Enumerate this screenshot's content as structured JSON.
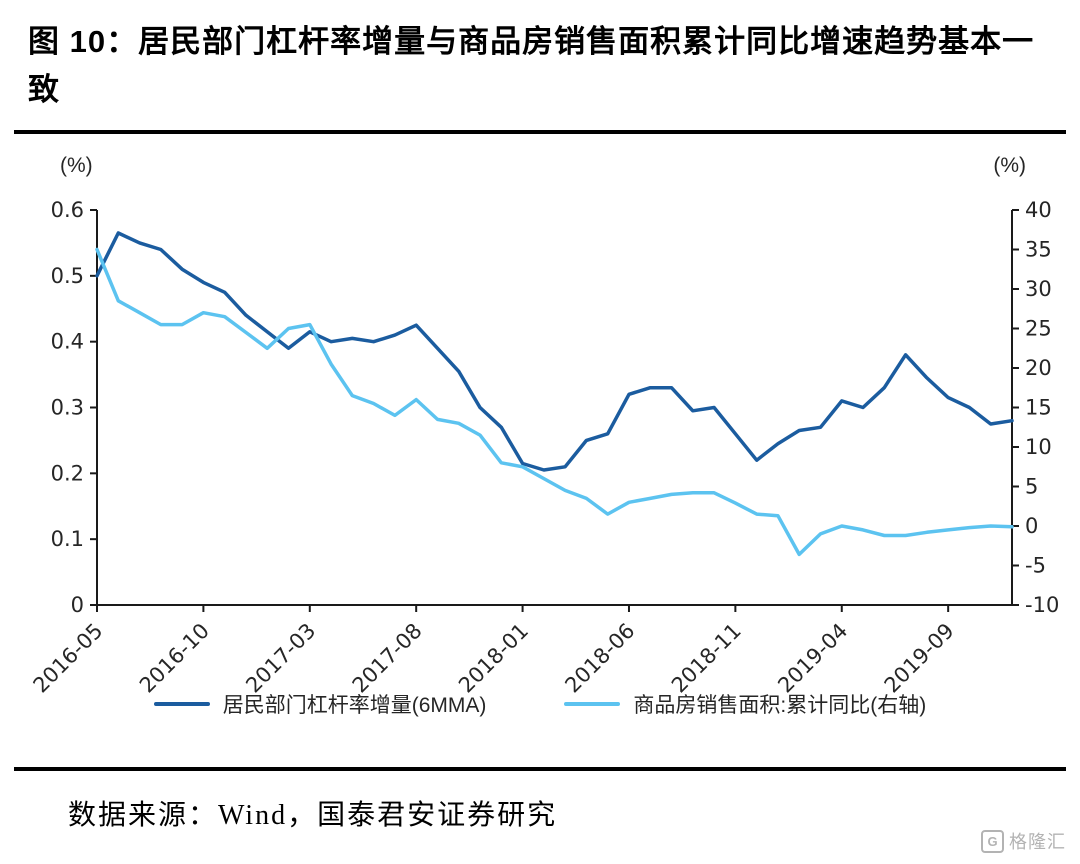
{
  "title": "图 10：居民部门杠杆率增量与商品房销售面积累计同比增速趋势基本一致",
  "source_text": "数据来源：Wind，国泰君安证券研究",
  "logo": {
    "letter": "G",
    "brand": "格隆汇"
  },
  "chart_data": {
    "type": "line",
    "title": "居民部门杠杆率增量与商品房销售面积累计同比增速",
    "grid": false,
    "legend_position": "bottom",
    "axis_color": "#1a1a1a",
    "tick_label_color": "#262626",
    "x": [
      "2016-05",
      "2016-06",
      "2016-07",
      "2016-08",
      "2016-09",
      "2016-10",
      "2016-11",
      "2016-12",
      "2017-01",
      "2017-02",
      "2017-03",
      "2017-04",
      "2017-05",
      "2017-06",
      "2017-07",
      "2017-08",
      "2017-09",
      "2017-10",
      "2017-11",
      "2017-12",
      "2018-01",
      "2018-02",
      "2018-03",
      "2018-04",
      "2018-05",
      "2018-06",
      "2018-07",
      "2018-08",
      "2018-09",
      "2018-10",
      "2018-11",
      "2018-12",
      "2019-01",
      "2019-02",
      "2019-03",
      "2019-04",
      "2019-05",
      "2019-06",
      "2019-07",
      "2019-08",
      "2019-09",
      "2019-10",
      "2019-11",
      "2019-12"
    ],
    "x_tick_labels": [
      "2016-05",
      "2016-10",
      "2017-03",
      "2017-08",
      "2018-01",
      "2018-06",
      "2018-11",
      "2019-04",
      "2019-09"
    ],
    "x_tick_indices": [
      0,
      5,
      10,
      15,
      20,
      25,
      30,
      35,
      40
    ],
    "left_axis": {
      "label": "(%)",
      "min": 0,
      "max": 0.6,
      "ticks": [
        "0",
        "0.1",
        "0.2",
        "0.3",
        "0.4",
        "0.5",
        "0.6"
      ]
    },
    "right_axis": {
      "label": "(%)",
      "min": -10,
      "max": 40,
      "ticks": [
        "-10",
        "-5",
        "0",
        "5",
        "10",
        "15",
        "20",
        "25",
        "30",
        "35",
        "40"
      ]
    },
    "series": [
      {
        "name": "居民部门杠杆率增量(6MMA)",
        "axis": "left",
        "color": "#1b5c9f",
        "values": [
          0.5,
          0.565,
          0.55,
          0.54,
          0.51,
          0.49,
          0.475,
          0.44,
          0.415,
          0.39,
          0.415,
          0.4,
          0.405,
          0.4,
          0.41,
          0.425,
          0.39,
          0.355,
          0.3,
          0.27,
          0.215,
          0.205,
          0.21,
          0.25,
          0.26,
          0.32,
          0.33,
          0.33,
          0.295,
          0.3,
          0.26,
          0.22,
          0.245,
          0.265,
          0.27,
          0.31,
          0.3,
          0.33,
          0.38,
          0.345,
          0.315,
          0.3,
          0.275,
          0.28
        ]
      },
      {
        "name": "商品房销售面积:累计同比(右轴)",
        "axis": "right",
        "color": "#5cc3f0",
        "values": [
          35,
          28.5,
          27,
          25.5,
          25.5,
          27,
          26.5,
          24.5,
          22.5,
          25,
          25.5,
          20.5,
          16.5,
          15.5,
          14,
          16,
          13.5,
          13,
          11.5,
          8,
          7.5,
          6,
          4.5,
          3.5,
          1.5,
          3,
          3.5,
          4,
          4.2,
          4.2,
          2.9,
          1.5,
          1.3,
          -3.6,
          -1,
          0,
          -0.5,
          -1.2,
          -1.2,
          -0.8,
          -0.5,
          -0.2,
          0,
          -0.1
        ]
      }
    ]
  }
}
